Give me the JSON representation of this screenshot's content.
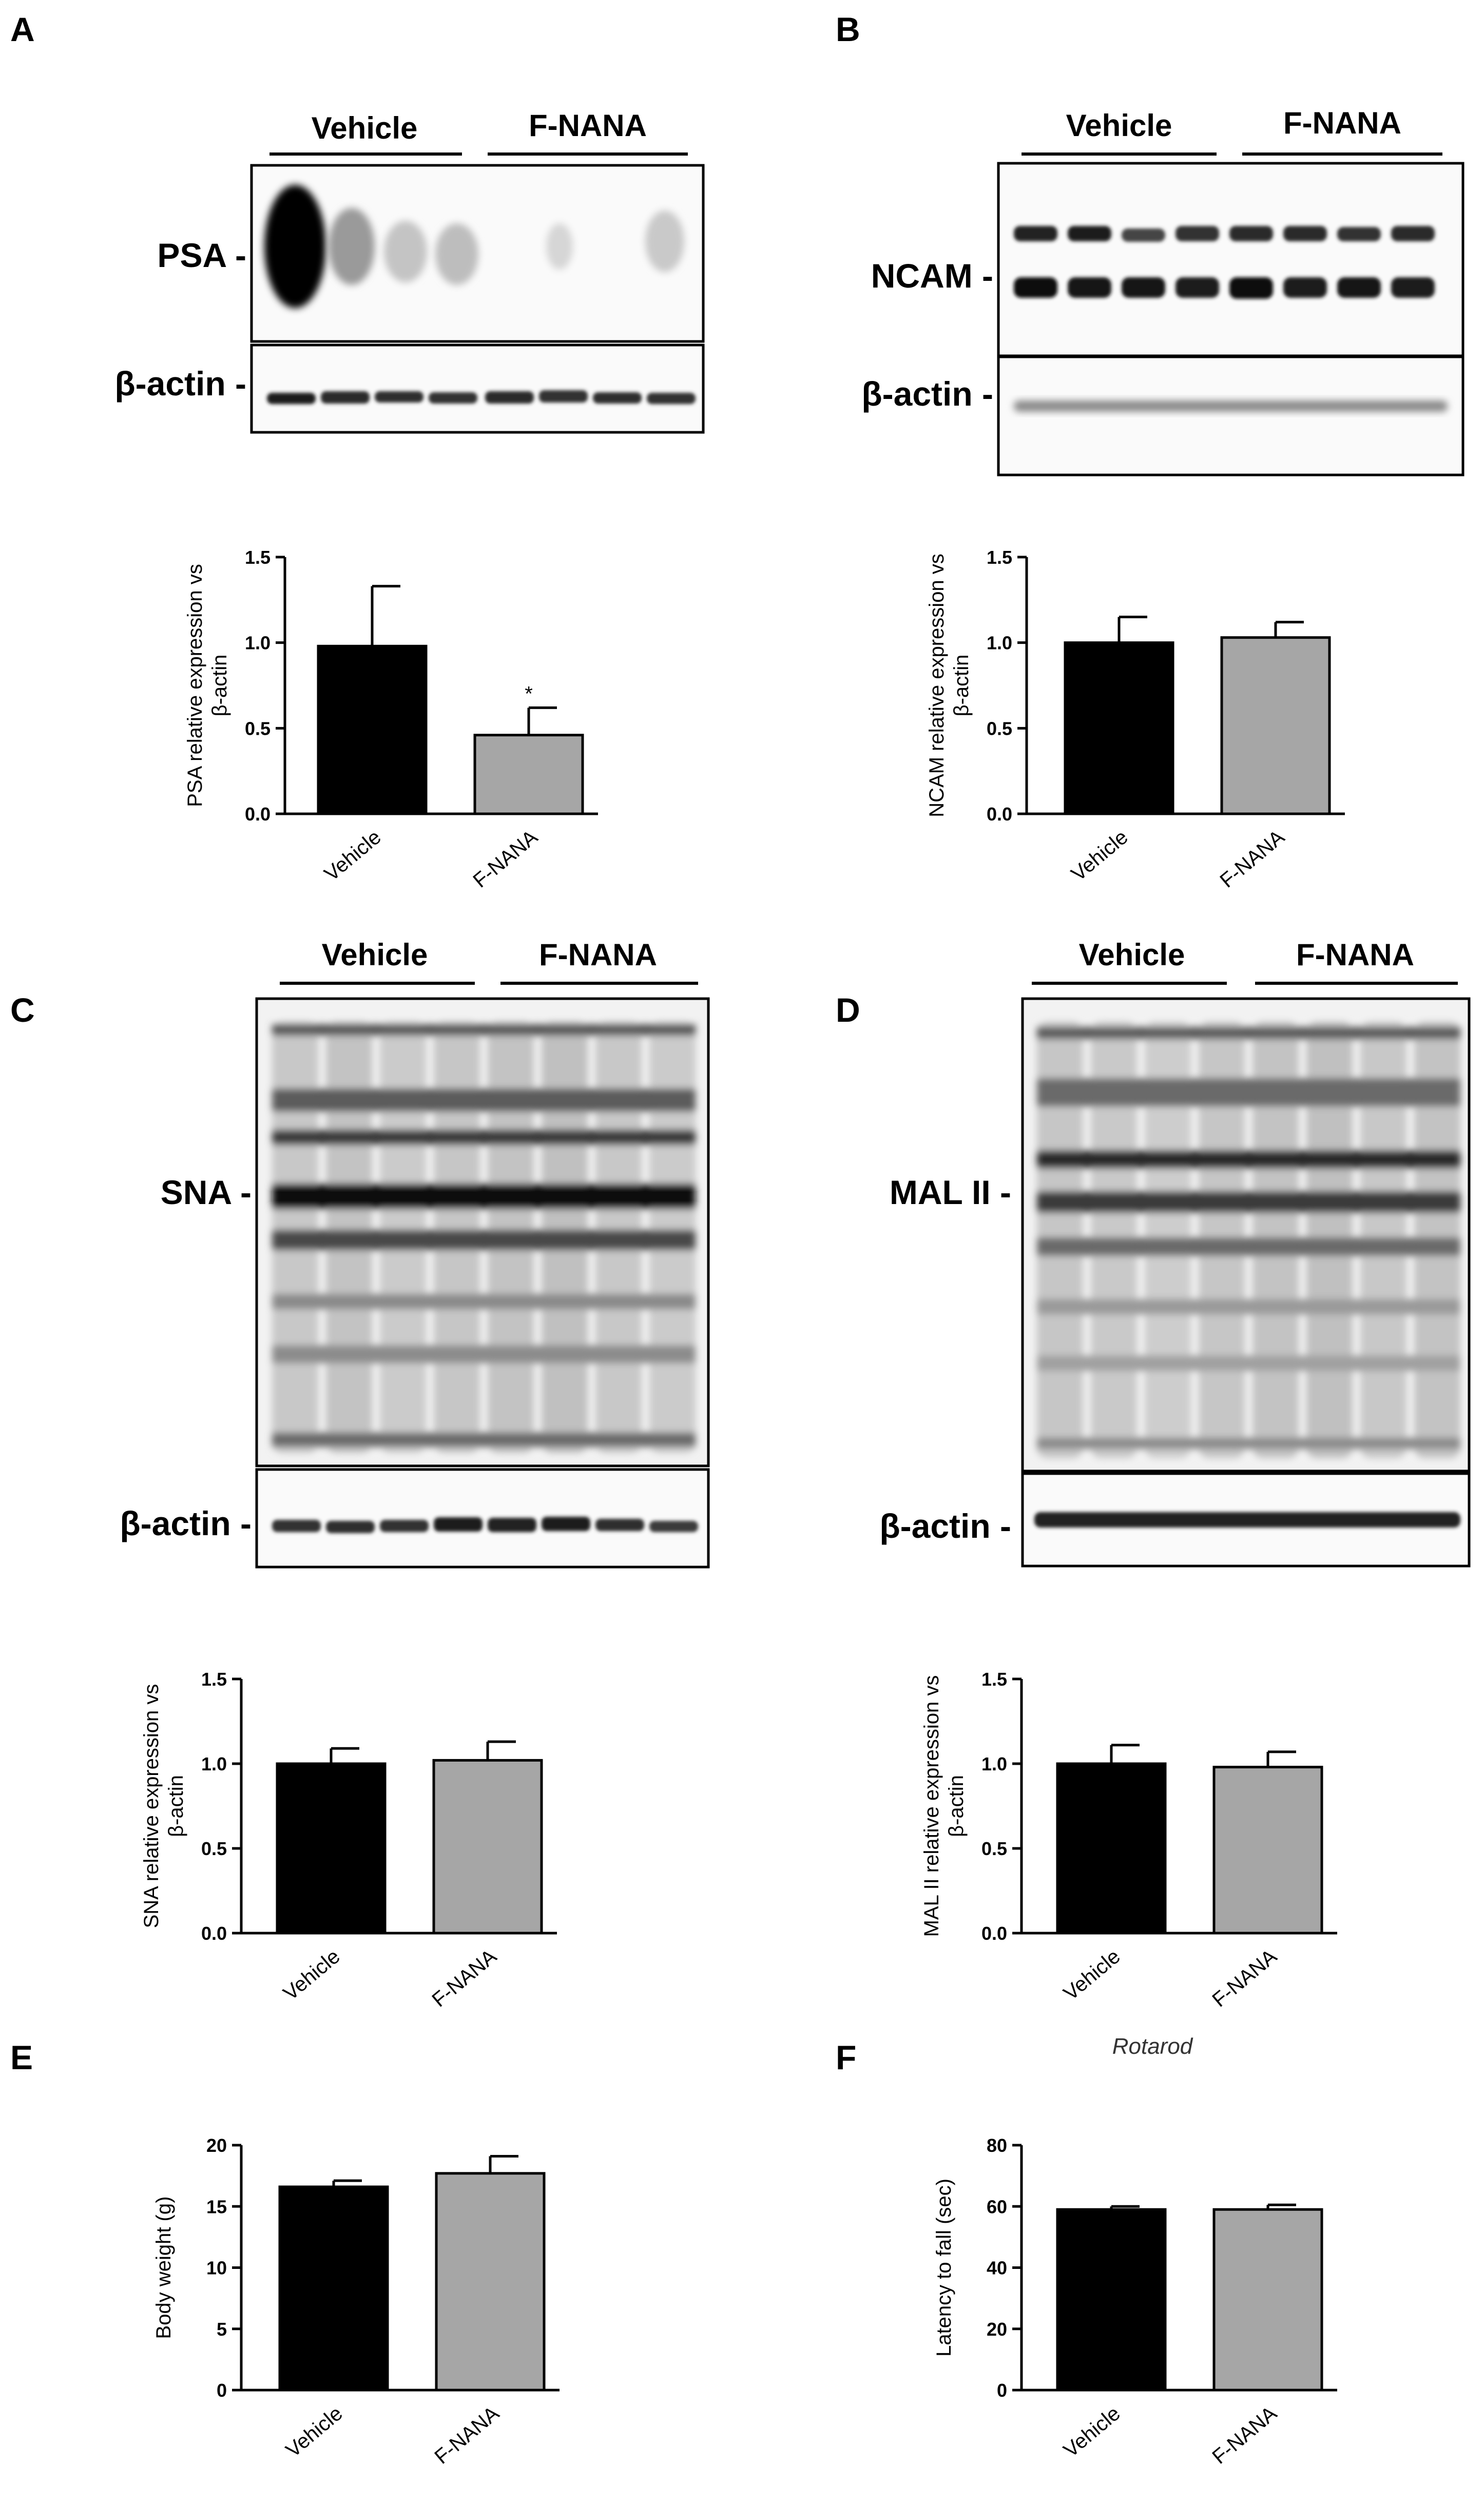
{
  "colors": {
    "vehicle": "#000000",
    "fnana": "#a6a6a6",
    "blot_bg": "#fafafa",
    "band": "#1a1a1a"
  },
  "annotation": "Rotarod",
  "blots": [
    {
      "panel": "A",
      "groups": [
        "Vehicle",
        "F-NANA"
      ],
      "labels": [
        "PSA -",
        "β-actin -"
      ]
    },
    {
      "panel": "B",
      "groups": [
        "Vehicle",
        "F-NANA"
      ],
      "labels": [
        "NCAM -",
        "β-actin -"
      ]
    },
    {
      "panel": "C",
      "groups": [
        "Vehicle",
        "F-NANA"
      ],
      "labels": [
        "SNA -",
        "β-actin -"
      ]
    },
    {
      "panel": "D",
      "groups": [
        "Vehicle",
        "F-NANA"
      ],
      "labels": [
        "MAL II -",
        "β-actin -"
      ]
    }
  ],
  "chart_data": [
    {
      "panel": "A",
      "type": "bar",
      "categories": [
        "Vehicle",
        "F-NANA"
      ],
      "values": [
        0.98,
        0.46
      ],
      "errors": [
        0.35,
        0.16
      ],
      "ylabel": [
        "PSA relative expression vs",
        "β-actin"
      ],
      "ylim": [
        0,
        1.5
      ],
      "yticks": [
        "0.0",
        "0.5",
        "1.0",
        "1.5"
      ],
      "significance": [
        "",
        "*"
      ]
    },
    {
      "panel": "B",
      "type": "bar",
      "categories": [
        "Vehicle",
        "F-NANA"
      ],
      "values": [
        1.0,
        1.03
      ],
      "errors": [
        0.15,
        0.09
      ],
      "ylabel": [
        "NCAM relative expression vs",
        "β-actin"
      ],
      "ylim": [
        0,
        1.5
      ],
      "yticks": [
        "0.0",
        "0.5",
        "1.0",
        "1.5"
      ],
      "significance": [
        "",
        ""
      ]
    },
    {
      "panel": "C",
      "type": "bar",
      "categories": [
        "Vehicle",
        "F-NANA"
      ],
      "values": [
        1.0,
        1.02
      ],
      "errors": [
        0.09,
        0.11
      ],
      "ylabel": [
        "SNA relative expression vs",
        "β-actin"
      ],
      "ylim": [
        0,
        1.5
      ],
      "yticks": [
        "0.0",
        "0.5",
        "1.0",
        "1.5"
      ],
      "significance": [
        "",
        ""
      ]
    },
    {
      "panel": "D",
      "type": "bar",
      "categories": [
        "Vehicle",
        "F-NANA"
      ],
      "values": [
        1.0,
        0.98
      ],
      "errors": [
        0.11,
        0.09
      ],
      "ylabel": [
        "MAL II relative expression vs",
        "β-actin"
      ],
      "ylim": [
        0,
        1.5
      ],
      "yticks": [
        "0.0",
        "0.5",
        "1.0",
        "1.5"
      ],
      "significance": [
        "",
        ""
      ]
    },
    {
      "panel": "E",
      "type": "bar",
      "categories": [
        "Vehicle",
        "F-NANA"
      ],
      "values": [
        16.6,
        17.7
      ],
      "errors": [
        0.5,
        1.4
      ],
      "ylabel": [
        "Body weight (g)"
      ],
      "ylim": [
        0,
        20
      ],
      "yticks": [
        "0",
        "5",
        "10",
        "15",
        "20"
      ],
      "significance": [
        "",
        ""
      ]
    },
    {
      "panel": "F",
      "type": "bar",
      "categories": [
        "Vehicle",
        "F-NANA"
      ],
      "values": [
        59,
        59
      ],
      "errors": [
        1,
        1.5
      ],
      "ylabel": [
        "Latency to fall (sec)"
      ],
      "ylim": [
        0,
        80
      ],
      "yticks": [
        "0",
        "20",
        "40",
        "60",
        "80"
      ],
      "significance": [
        "",
        ""
      ]
    }
  ]
}
